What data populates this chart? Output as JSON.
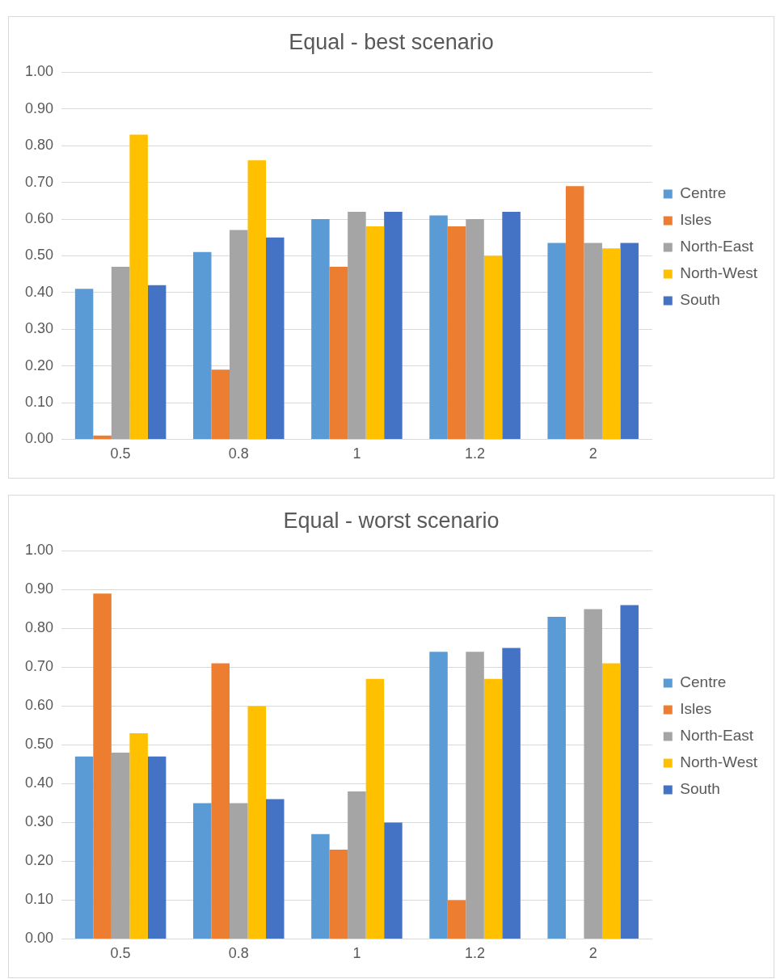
{
  "chart_data": [
    {
      "type": "bar",
      "title": "Equal - best scenario",
      "categories": [
        "0.5",
        "0.8",
        "1",
        "1.2",
        "2"
      ],
      "series": [
        {
          "name": "Centre",
          "color": "#5b9bd5",
          "values": [
            0.41,
            0.51,
            0.6,
            0.61,
            0.535
          ]
        },
        {
          "name": "Isles",
          "color": "#ed7d31",
          "values": [
            0.01,
            0.19,
            0.47,
            0.58,
            0.69
          ]
        },
        {
          "name": "North-East",
          "color": "#a5a5a5",
          "values": [
            0.47,
            0.57,
            0.62,
            0.6,
            0.535
          ]
        },
        {
          "name": "North-West",
          "color": "#ffc000",
          "values": [
            0.83,
            0.76,
            0.58,
            0.5,
            0.52
          ]
        },
        {
          "name": "South",
          "color": "#4472c4",
          "values": [
            0.42,
            0.55,
            0.62,
            0.62,
            0.535
          ]
        }
      ],
      "ylim": [
        0,
        1
      ],
      "yticks": [
        {
          "value": 0,
          "label": "0.00"
        },
        {
          "value": 0.1,
          "label": "0.10"
        },
        {
          "value": 0.2,
          "label": "0.20"
        },
        {
          "value": 0.3,
          "label": "0.30"
        },
        {
          "value": 0.4,
          "label": "0.40"
        },
        {
          "value": 0.5,
          "label": "0.50"
        },
        {
          "value": 0.6,
          "label": "0.60"
        },
        {
          "value": 0.7,
          "label": "0.70"
        },
        {
          "value": 0.8,
          "label": "0.80"
        },
        {
          "value": 0.9,
          "label": "0.90"
        },
        {
          "value": 1,
          "label": "1.00"
        }
      ],
      "grid": "y",
      "legend": "right"
    },
    {
      "type": "bar",
      "title": "Equal - worst scenario",
      "categories": [
        "0.5",
        "0.8",
        "1",
        "1.2",
        "2"
      ],
      "series": [
        {
          "name": "Centre",
          "color": "#5b9bd5",
          "values": [
            0.47,
            0.35,
            0.27,
            0.74,
            0.83
          ]
        },
        {
          "name": "Isles",
          "color": "#ed7d31",
          "values": [
            0.89,
            0.71,
            0.23,
            0.1,
            0
          ]
        },
        {
          "name": "North-East",
          "color": "#a5a5a5",
          "values": [
            0.48,
            0.35,
            0.38,
            0.74,
            0.85
          ]
        },
        {
          "name": "North-West",
          "color": "#ffc000",
          "values": [
            0.53,
            0.6,
            0.67,
            0.67,
            0.71
          ]
        },
        {
          "name": "South",
          "color": "#4472c4",
          "values": [
            0.47,
            0.36,
            0.3,
            0.75,
            0.86
          ]
        }
      ],
      "ylim": [
        0,
        1
      ],
      "yticks": [
        {
          "value": 0,
          "label": "0.00"
        },
        {
          "value": 0.1,
          "label": "0.10"
        },
        {
          "value": 0.2,
          "label": "0.20"
        },
        {
          "value": 0.3,
          "label": "0.30"
        },
        {
          "value": 0.4,
          "label": "0.40"
        },
        {
          "value": 0.5,
          "label": "0.50"
        },
        {
          "value": 0.6,
          "label": "0.60"
        },
        {
          "value": 0.7,
          "label": "0.70"
        },
        {
          "value": 0.8,
          "label": "0.80"
        },
        {
          "value": 0.9,
          "label": "0.90"
        },
        {
          "value": 1,
          "label": "1.00"
        }
      ],
      "grid": "y",
      "legend": "right"
    }
  ]
}
